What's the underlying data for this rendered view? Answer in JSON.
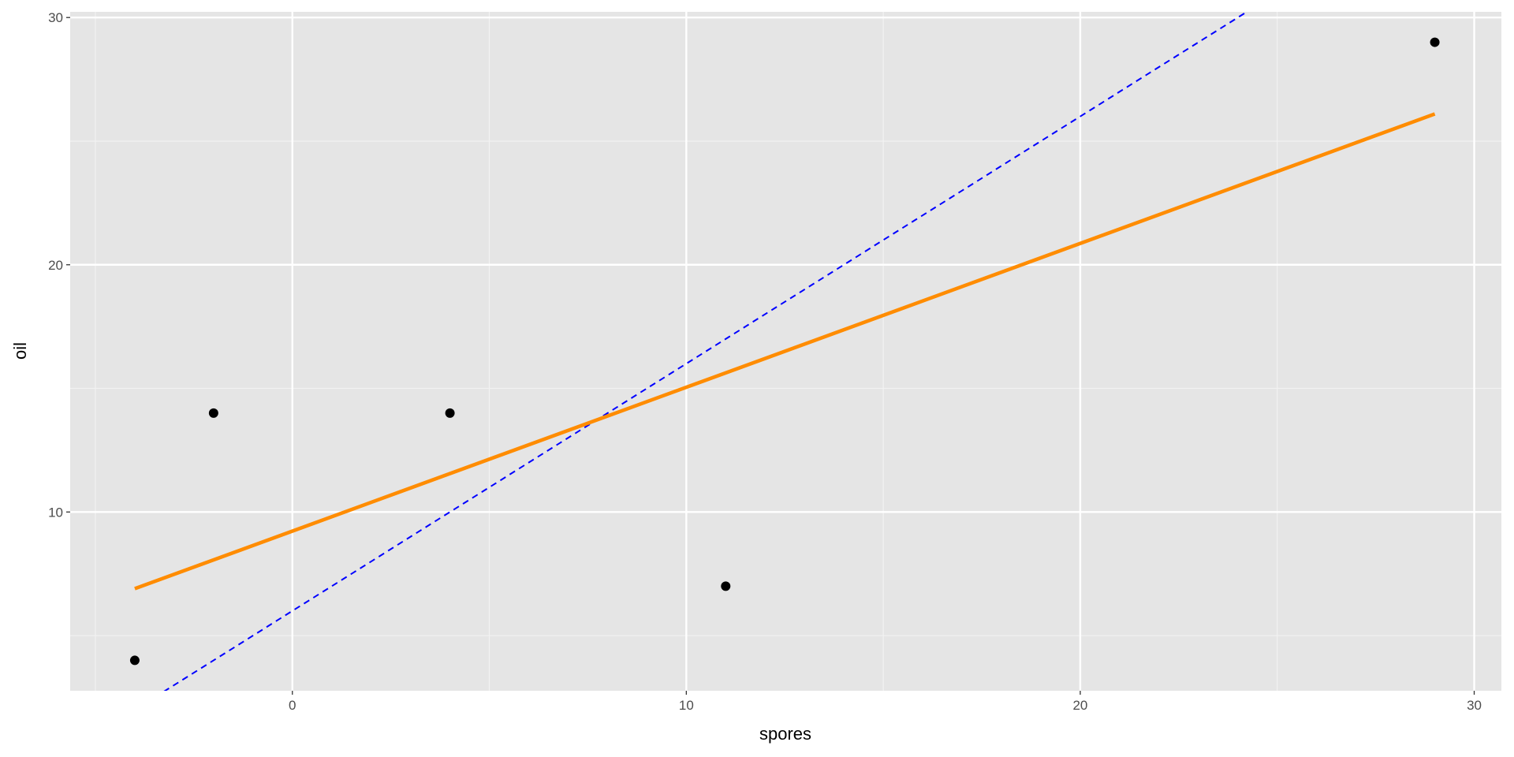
{
  "chart_data": {
    "type": "scatter",
    "x_label": "spores",
    "y_label": "oil",
    "x": [
      -4,
      -2,
      4,
      11,
      29
    ],
    "values": [
      4,
      14,
      14,
      7,
      29
    ],
    "color": "#000000",
    "fit": {
      "x": [
        -4,
        29
      ],
      "values": [
        6.9,
        26.1
      ],
      "color": "#ff8c00"
    },
    "abline": {
      "intercept": 6,
      "slope": 1,
      "color": "#0000ff",
      "dashed": true
    },
    "xlim": [
      -5.64,
      30.69
    ],
    "ylim": [
      2.77,
      30.23
    ],
    "xticks": [
      0,
      10,
      20,
      30
    ],
    "yticks": [
      10,
      20,
      30
    ],
    "x_minor_grid": [
      -5,
      5,
      15,
      25
    ],
    "y_minor_grid": [
      5,
      15,
      25
    ],
    "grid": true
  }
}
